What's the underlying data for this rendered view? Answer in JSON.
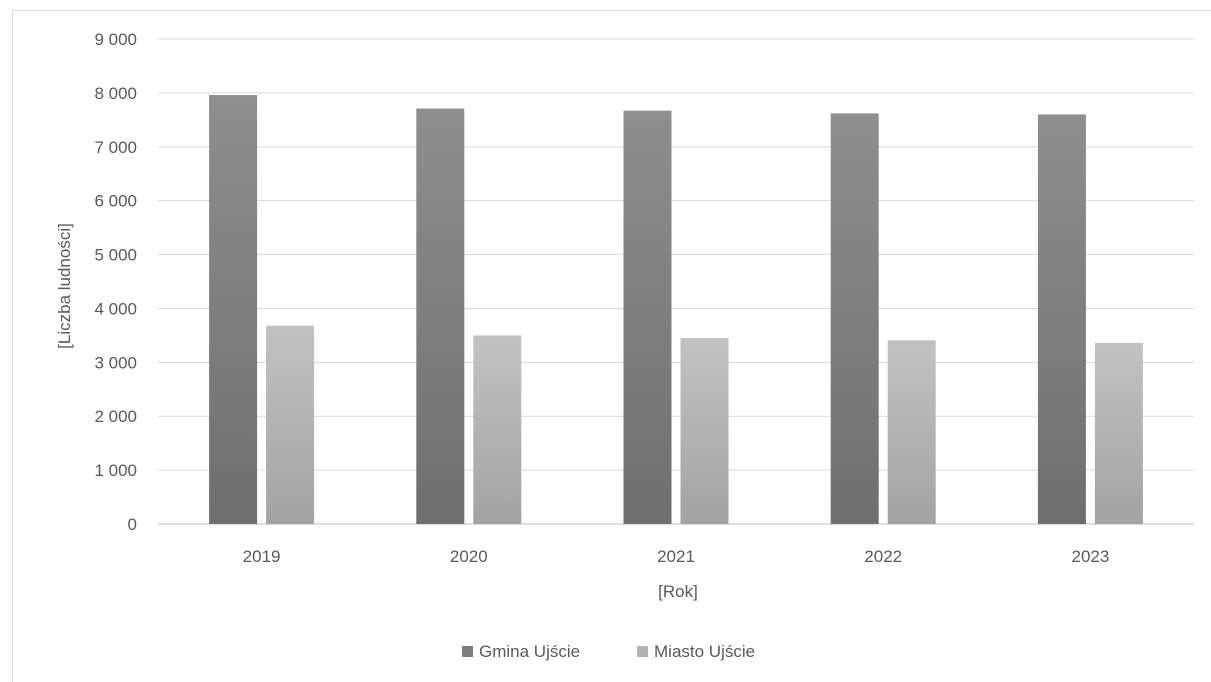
{
  "chart_data": {
    "type": "bar",
    "categories": [
      "2019",
      "2020",
      "2021",
      "2022",
      "2023"
    ],
    "series": [
      {
        "name": "Gmina Ujście",
        "values": [
          7960,
          7710,
          7670,
          7620,
          7600
        ],
        "color": "#7f7f7f"
      },
      {
        "name": "Miasto Ujście",
        "values": [
          3680,
          3500,
          3450,
          3410,
          3360
        ],
        "color": "#b3b3b3"
      }
    ],
    "title": "",
    "xlabel": "[Rok]",
    "ylabel": "[Liczba ludności]",
    "ylim": [
      0,
      9000
    ],
    "yticks": [
      0,
      1000,
      2000,
      3000,
      4000,
      5000,
      6000,
      7000,
      8000,
      9000
    ],
    "ytick_labels": [
      "0",
      "1 000",
      "2 000",
      "3 000",
      "4 000",
      "5 000",
      "6 000",
      "7 000",
      "8 000",
      "9 000"
    ],
    "grid": true,
    "legend_position": "bottom"
  }
}
